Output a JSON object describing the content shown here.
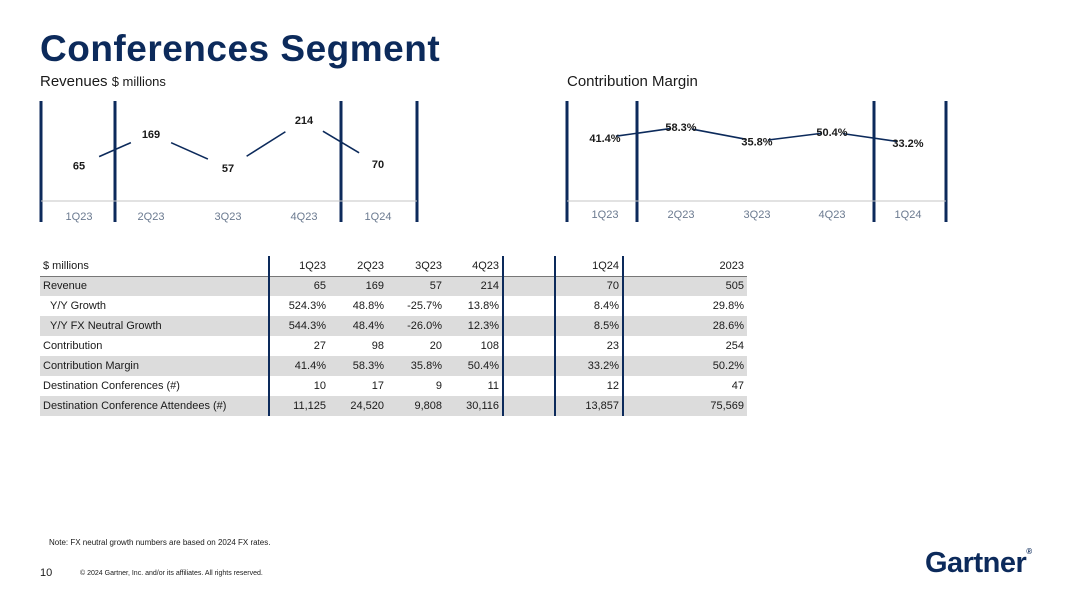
{
  "page": {
    "title": "Conferences Segment",
    "page_number": "10",
    "note": "Note: FX neutral growth numbers are based on 2024 FX rates.",
    "copyright": "© 2024 Gartner, Inc. and/or its affiliates. All rights reserved.",
    "logo_text": "Gartner",
    "logo_mark": "®"
  },
  "colors": {
    "navy": "#0c2a5b",
    "shade": "#dcdcdc",
    "tick": "#6b7a90"
  },
  "chart_data": [
    {
      "type": "line",
      "title": "Revenues",
      "unit": "$ millions",
      "categories": [
        "1Q23",
        "2Q23",
        "3Q23",
        "4Q23",
        "1Q24"
      ],
      "values": [
        65,
        169,
        57,
        214,
        70
      ],
      "labels": [
        "65",
        "169",
        "57",
        "214",
        "70"
      ],
      "ylim": [
        0,
        240
      ]
    },
    {
      "type": "line",
      "title": "Contribution Margin",
      "categories": [
        "1Q23",
        "2Q23",
        "3Q23",
        "4Q23",
        "1Q24"
      ],
      "values": [
        41.4,
        58.3,
        35.8,
        50.4,
        33.2
      ],
      "labels": [
        "41.4%",
        "58.3%",
        "35.8%",
        "50.4%",
        "33.2%"
      ],
      "ylim": [
        0,
        100
      ]
    }
  ],
  "table": {
    "header": [
      "$ millions",
      "1Q23",
      "2Q23",
      "3Q23",
      "4Q23",
      "1Q24",
      "2023"
    ],
    "rows": [
      [
        "Revenue",
        "65",
        "169",
        "57",
        "214",
        "70",
        "505"
      ],
      [
        "Y/Y Growth",
        "524.3%",
        "48.8%",
        "-25.7%",
        "13.8%",
        "8.4%",
        "29.8%"
      ],
      [
        "Y/Y FX Neutral Growth",
        "544.3%",
        "48.4%",
        "-26.0%",
        "12.3%",
        "8.5%",
        "28.6%"
      ],
      [
        "Contribution",
        "27",
        "98",
        "20",
        "108",
        "23",
        "254"
      ],
      [
        "Contribution Margin",
        "41.4%",
        "58.3%",
        "35.8%",
        "50.4%",
        "33.2%",
        "50.2%"
      ],
      [
        "Destination Conferences (#)",
        "10",
        "17",
        "9",
        "11",
        "12",
        "47"
      ],
      [
        "Destination Conference Attendees (#)",
        "11,125",
        "24,520",
        "9,808",
        "30,116",
        "13,857",
        "75,569"
      ]
    ]
  }
}
